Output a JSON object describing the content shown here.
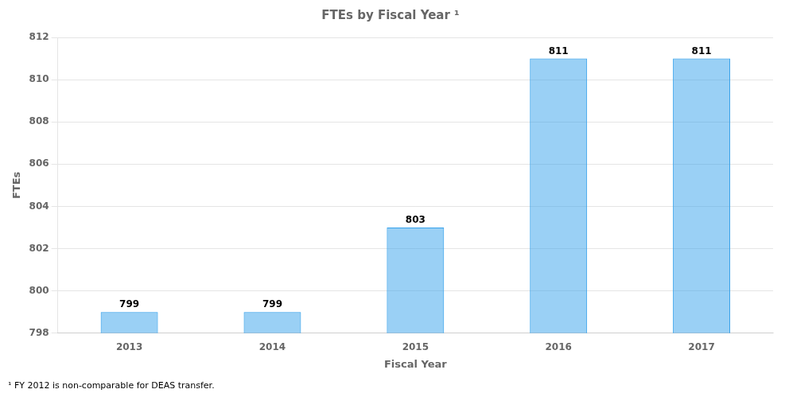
{
  "chart_data": {
    "type": "bar",
    "title": "FTEs by Fiscal Year ¹",
    "xlabel": "Fiscal Year",
    "ylabel": "FTEs",
    "categories": [
      "2013",
      "2014",
      "2015",
      "2016",
      "2017"
    ],
    "values": [
      799,
      799,
      803,
      811,
      811
    ],
    "ylim": [
      798,
      812
    ],
    "yticks": [
      798,
      800,
      802,
      804,
      806,
      808,
      810,
      812
    ],
    "grid": true,
    "data_labels": true,
    "footnote": "¹ FY 2012 is non-comparable for DEAS transfer."
  }
}
